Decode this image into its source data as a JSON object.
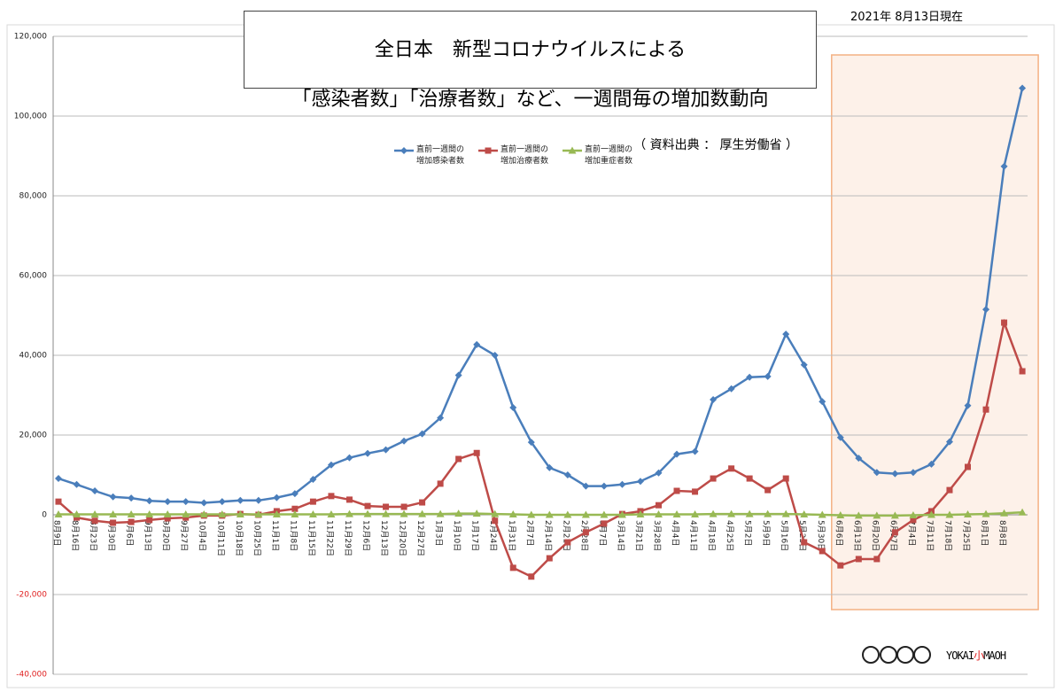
{
  "chart_data": {
    "type": "line",
    "title": [
      "全日本　新型コロナウイルスによる",
      "「感染者数」「治療者数」など、一週間毎の増加数動向"
    ],
    "source": "（ 資料出典 ： 厚生労働省 ）",
    "date_note": "2021年 8月13日現在",
    "credit": [
      "YOKAI",
      "小",
      "MAOH"
    ],
    "categories": [
      "8月9日",
      "8月16日",
      "8月23日",
      "8月30日",
      "9月6日",
      "9月13日",
      "9月20日",
      "9月27日",
      "10月4日",
      "10月11日",
      "10月18日",
      "10月25日",
      "11月1日",
      "11月8日",
      "11月15日",
      "11月22日",
      "11月29日",
      "12月6日",
      "12月13日",
      "12月20日",
      "12月27日",
      "1月3日",
      "1月10日",
      "1月17日",
      "1月24日",
      "1月31日",
      "2月7日",
      "2月14日",
      "2月21日",
      "2月28日",
      "3月7日",
      "3月14日",
      "3月21日",
      "3月28日",
      "4月4日",
      "4月11日",
      "4月18日",
      "4月25日",
      "5月2日",
      "5月9日",
      "5月16日",
      "5月23日",
      "5月30日",
      "6月6日",
      "6月13日",
      "6月20日",
      "6月27日",
      "7月4日",
      "7月11日",
      "7月18日",
      "7月25日",
      "8月1日",
      "8月8日",
      null
    ],
    "series": [
      {
        "name": "直前一週間の\n増加感染者数",
        "color": "#4a7ebb",
        "marker": "diamond",
        "values": [
          9100,
          7600,
          6000,
          4500,
          4200,
          3500,
          3300,
          3300,
          3000,
          3300,
          3600,
          3600,
          4300,
          5300,
          8900,
          12500,
          14300,
          15400,
          16300,
          18500,
          20300,
          24300,
          35000,
          42700,
          40000,
          26900,
          18200,
          11800,
          10000,
          7200,
          7200,
          7600,
          8400,
          10500,
          15200,
          15900,
          28900,
          31600,
          34500,
          34700,
          45300,
          37600,
          28400,
          19400,
          14200,
          10600,
          10300,
          10600,
          12700,
          18300,
          27400,
          51500,
          87400,
          107000
        ]
      },
      {
        "name": "直前一週間の\n増加治療者数",
        "color": "#be4b48",
        "marker": "square",
        "values": [
          3300,
          -700,
          -1500,
          -2000,
          -1800,
          -1300,
          -900,
          -700,
          -200,
          -200,
          200,
          0,
          900,
          1500,
          3300,
          4700,
          3800,
          2200,
          2000,
          2000,
          3100,
          7800,
          14000,
          15500,
          -1500,
          -13300,
          -15500,
          -10900,
          -6900,
          -4400,
          -2200,
          200,
          900,
          2400,
          6000,
          5800,
          9100,
          11600,
          9100,
          6200,
          9100,
          -6900,
          -9100,
          -12700,
          -11100,
          -11100,
          -4400,
          -1300,
          900,
          6200,
          12000,
          26400,
          48200,
          36000
        ]
      },
      {
        "name": "直前一週間の\n増加重症者数",
        "color": "#98b954",
        "marker": "triangle",
        "values": [
          100,
          100,
          100,
          100,
          100,
          100,
          100,
          100,
          100,
          100,
          100,
          100,
          100,
          100,
          100,
          100,
          200,
          200,
          200,
          200,
          200,
          200,
          300,
          300,
          200,
          100,
          0,
          0,
          0,
          0,
          0,
          0,
          100,
          100,
          100,
          100,
          200,
          200,
          200,
          200,
          200,
          100,
          0,
          -100,
          -200,
          -200,
          -200,
          -100,
          0,
          0,
          100,
          200,
          400,
          600
        ]
      }
    ],
    "ylim": [
      -40000,
      120000
    ],
    "yticks": [
      {
        "value": -40000,
        "label": "-40,000"
      },
      {
        "value": -20000,
        "label": "-20,000"
      },
      0,
      {
        "value": 20000,
        "label": "20,000"
      },
      {
        "value": 40000,
        "label": "40,000"
      },
      {
        "value": 60000,
        "label": "60,000"
      },
      {
        "value": 80000,
        "label": "80,000"
      },
      {
        "value": 100000,
        "label": "100,000"
      },
      {
        "value": 120000,
        "label": "120,000"
      }
    ],
    "grid": true,
    "negative_tick_color": "#e02020",
    "highlight": {
      "from": 43,
      "to": 53,
      "color": "#f4b183"
    }
  }
}
